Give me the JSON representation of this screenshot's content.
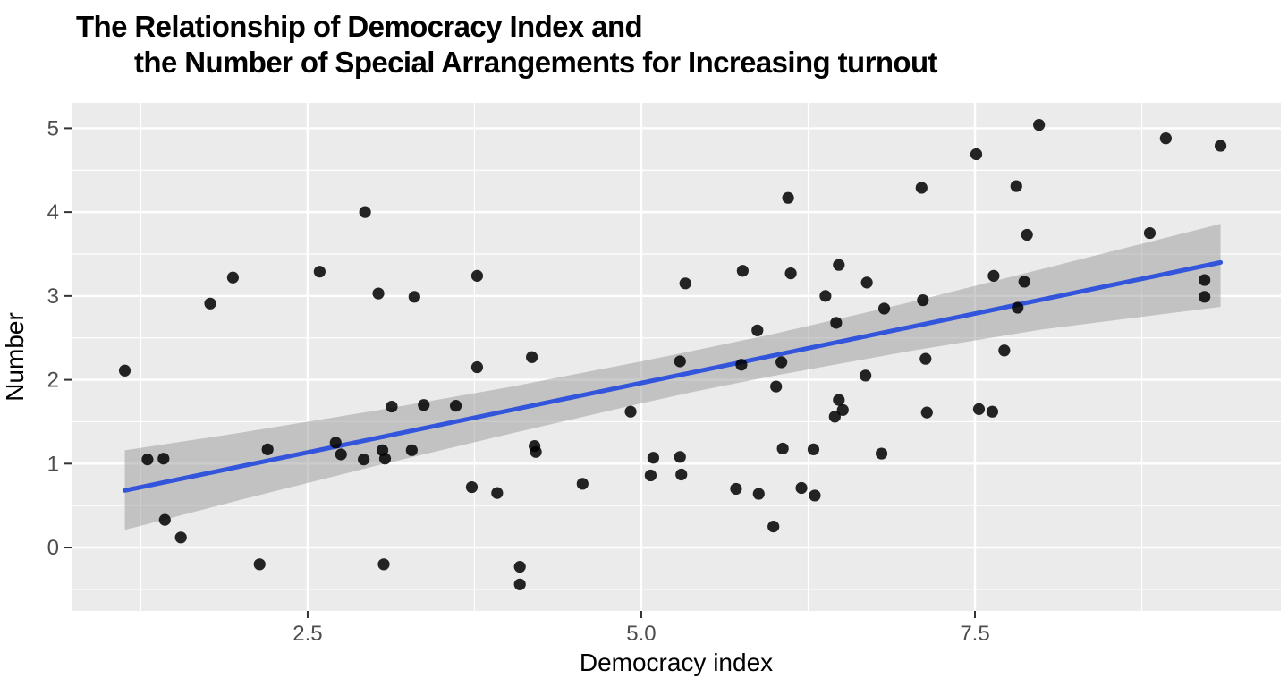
{
  "title": {
    "line1": "The Relationship of Democracy Index and",
    "line2": "the Number of Special Arrangements for Increasing turnout"
  },
  "axes": {
    "x": {
      "title": "Democracy index",
      "ticks": [
        2.5,
        5.0,
        7.5
      ],
      "tick_labels": [
        "2.5",
        "5.0",
        "7.5"
      ],
      "minor_ticks": [
        1.25,
        3.75,
        6.25,
        8.75
      ],
      "domain": [
        0.73,
        9.79
      ]
    },
    "y": {
      "title": "Number",
      "ticks": [
        0,
        1,
        2,
        3,
        4,
        5
      ],
      "tick_labels": [
        "0",
        "1",
        "2",
        "3",
        "4",
        "5"
      ],
      "minor_ticks": [
        -0.5,
        0.5,
        1.5,
        2.5,
        3.5,
        4.5
      ],
      "domain": [
        -0.76,
        5.3
      ]
    }
  },
  "chart_data": {
    "type": "scatter",
    "title": "The Relationship of Democracy Index and the Number of Special Arrangements for Increasing turnout",
    "xlabel": "Democracy index",
    "ylabel": "Number",
    "xlim": [
      0.731,
      9.792
    ],
    "ylim": [
      -0.757,
      5.303
    ],
    "grid": true,
    "points": [
      [
        1.13,
        2.11
      ],
      [
        1.3,
        1.05
      ],
      [
        1.42,
        1.06
      ],
      [
        1.43,
        0.33
      ],
      [
        1.55,
        0.12
      ],
      [
        1.77,
        2.91
      ],
      [
        1.94,
        3.22
      ],
      [
        2.14,
        -0.2
      ],
      [
        2.2,
        1.17
      ],
      [
        2.59,
        3.29
      ],
      [
        2.71,
        1.25
      ],
      [
        2.75,
        1.11
      ],
      [
        2.92,
        1.05
      ],
      [
        2.93,
        4.0
      ],
      [
        3.03,
        3.03
      ],
      [
        3.06,
        1.16
      ],
      [
        3.07,
        -0.2
      ],
      [
        3.08,
        1.06
      ],
      [
        3.13,
        1.68
      ],
      [
        3.28,
        1.16
      ],
      [
        3.3,
        2.99
      ],
      [
        3.37,
        1.7
      ],
      [
        3.61,
        1.69
      ],
      [
        3.73,
        0.72
      ],
      [
        3.77,
        3.24
      ],
      [
        3.77,
        2.15
      ],
      [
        3.92,
        0.65
      ],
      [
        4.09,
        -0.23
      ],
      [
        4.09,
        -0.44
      ],
      [
        4.18,
        2.27
      ],
      [
        4.2,
        1.21
      ],
      [
        4.21,
        1.14
      ],
      [
        4.56,
        0.76
      ],
      [
        4.92,
        1.62
      ],
      [
        5.07,
        0.86
      ],
      [
        5.09,
        1.07
      ],
      [
        5.29,
        1.08
      ],
      [
        5.3,
        0.87
      ],
      [
        5.29,
        2.22
      ],
      [
        5.33,
        3.15
      ],
      [
        5.71,
        0.7
      ],
      [
        5.75,
        2.18
      ],
      [
        5.76,
        3.3
      ],
      [
        5.87,
        2.59
      ],
      [
        5.88,
        0.64
      ],
      [
        5.99,
        0.25
      ],
      [
        6.01,
        1.92
      ],
      [
        6.05,
        2.21
      ],
      [
        6.06,
        1.18
      ],
      [
        6.1,
        4.17
      ],
      [
        6.12,
        3.27
      ],
      [
        6.2,
        0.71
      ],
      [
        6.29,
        1.17
      ],
      [
        6.3,
        0.62
      ],
      [
        6.38,
        3.0
      ],
      [
        6.45,
        1.56
      ],
      [
        6.46,
        2.68
      ],
      [
        6.48,
        3.37
      ],
      [
        6.48,
        1.76
      ],
      [
        6.51,
        1.64
      ],
      [
        6.68,
        2.05
      ],
      [
        6.69,
        3.16
      ],
      [
        6.8,
        1.12
      ],
      [
        6.82,
        2.85
      ],
      [
        7.1,
        4.29
      ],
      [
        7.11,
        2.95
      ],
      [
        7.13,
        2.25
      ],
      [
        7.14,
        1.61
      ],
      [
        7.51,
        4.69
      ],
      [
        7.53,
        1.65
      ],
      [
        7.63,
        1.62
      ],
      [
        7.64,
        3.24
      ],
      [
        7.72,
        2.35
      ],
      [
        7.81,
        4.31
      ],
      [
        7.82,
        2.86
      ],
      [
        7.87,
        3.17
      ],
      [
        7.89,
        3.73
      ],
      [
        7.98,
        5.04
      ],
      [
        8.81,
        3.75
      ],
      [
        8.93,
        4.88
      ],
      [
        9.22,
        3.19
      ],
      [
        9.22,
        2.99
      ],
      [
        9.34,
        4.79
      ]
    ],
    "regression_line": {
      "x1": 1.13,
      "y1": 0.68,
      "x2": 9.34,
      "y2": 3.4
    },
    "confidence_band": [
      {
        "x": 1.13,
        "lo": 0.21,
        "hi": 1.16
      },
      {
        "x": 2.0,
        "lo": 0.57,
        "hi": 1.37
      },
      {
        "x": 3.0,
        "lo": 0.97,
        "hi": 1.63
      },
      {
        "x": 4.0,
        "lo": 1.35,
        "hi": 1.91
      },
      {
        "x": 5.0,
        "lo": 1.72,
        "hi": 2.22
      },
      {
        "x": 5.4,
        "lo": 1.86,
        "hi": 2.35
      },
      {
        "x": 6.0,
        "lo": 2.05,
        "hi": 2.55
      },
      {
        "x": 7.0,
        "lo": 2.34,
        "hi": 2.92
      },
      {
        "x": 8.0,
        "lo": 2.6,
        "hi": 3.32
      },
      {
        "x": 9.34,
        "lo": 2.87,
        "hi": 3.86
      }
    ]
  },
  "colors": {
    "background": "#FFFFFF",
    "panel_background": "#EBEBEB",
    "grid": "#FFFFFF",
    "point": "#000000",
    "point_opacity": 0.85,
    "regression_line": "#3355DB",
    "confidence_band": "#999999",
    "band_opacity": 0.5,
    "tick_mark": "#333333",
    "tick_label": "#4D4D4D",
    "axis_title": "#000000",
    "title": "#000000"
  }
}
